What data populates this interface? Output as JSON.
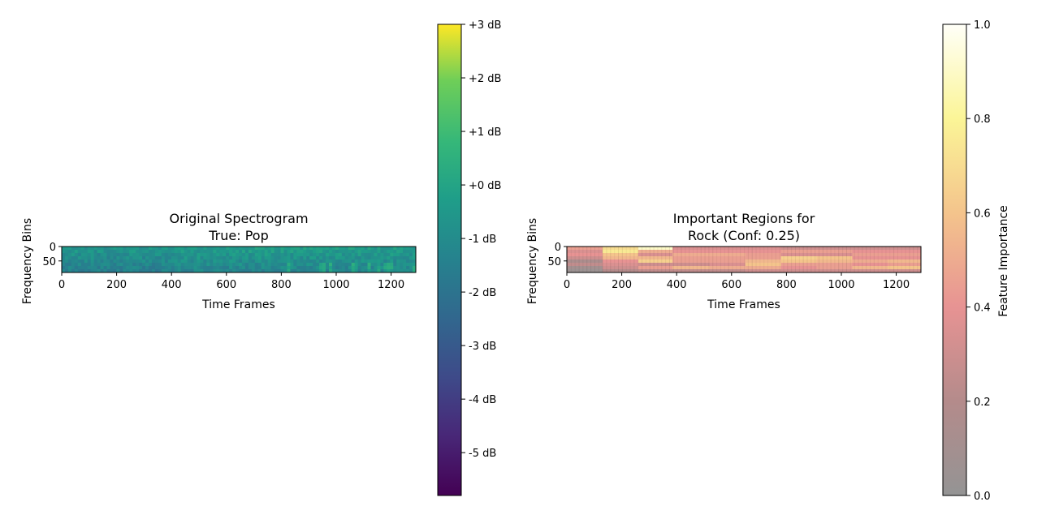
{
  "chart_data": [
    {
      "type": "heatmap",
      "title_lines": [
        "Original Spectrogram",
        "True: Pop"
      ],
      "xlabel": "Time Frames",
      "ylabel": "Frequency Bins",
      "xlim": [
        0,
        1290
      ],
      "ylim": [
        0,
        90
      ],
      "x_ticks": [
        0,
        200,
        400,
        600,
        800,
        1000,
        1200
      ],
      "y_ticks": [
        0,
        50
      ],
      "colormap": "viridis",
      "colorbar": {
        "label": "",
        "range": [
          -5.8,
          3.0
        ],
        "ticks": [
          3,
          2,
          1,
          0,
          -1,
          -2,
          -3,
          -4,
          -5
        ],
        "tick_labels": [
          "+3 dB",
          "+2 dB",
          "+1 dB",
          "+0 dB",
          "-1 dB",
          "-2 dB",
          "-3 dB",
          "-4 dB",
          "-5 dB"
        ]
      },
      "grid": false
    },
    {
      "type": "heatmap",
      "title_lines": [
        "Important Regions for",
        "Rock (Conf: 0.25)"
      ],
      "xlabel": "Time Frames",
      "ylabel": "Frequency Bins",
      "xlim": [
        0,
        1290
      ],
      "ylim": [
        0,
        90
      ],
      "x_ticks": [
        0,
        200,
        400,
        600,
        800,
        1000,
        1200
      ],
      "y_ticks": [
        0,
        50
      ],
      "colormap": "hot_alpha_overlay",
      "overlay_segments": [
        {
          "x": [
            0,
            130
          ],
          "rows": [
            0.45,
            0.35,
            0.4,
            0.3,
            0.15,
            0.25,
            0.1,
            0.05
          ]
        },
        {
          "x": [
            130,
            260
          ],
          "rows": [
            0.7,
            0.75,
            0.6,
            0.55,
            0.4,
            0.35,
            0.3,
            0.2
          ]
        },
        {
          "x": [
            260,
            385
          ],
          "rows": [
            0.9,
            0.5,
            0.35,
            0.55,
            0.65,
            0.3,
            0.45,
            0.25
          ]
        },
        {
          "x": [
            385,
            520
          ],
          "rows": [
            0.35,
            0.4,
            0.5,
            0.45,
            0.45,
            0.3,
            0.55,
            0.25
          ]
        },
        {
          "x": [
            520,
            650
          ],
          "rows": [
            0.35,
            0.4,
            0.5,
            0.45,
            0.45,
            0.35,
            0.5,
            0.25
          ]
        },
        {
          "x": [
            650,
            780
          ],
          "rows": [
            0.35,
            0.4,
            0.45,
            0.45,
            0.55,
            0.6,
            0.5,
            0.3
          ]
        },
        {
          "x": [
            780,
            910
          ],
          "rows": [
            0.3,
            0.45,
            0.35,
            0.65,
            0.6,
            0.45,
            0.4,
            0.3
          ]
        },
        {
          "x": [
            910,
            1040
          ],
          "rows": [
            0.3,
            0.45,
            0.35,
            0.6,
            0.55,
            0.45,
            0.45,
            0.3
          ]
        },
        {
          "x": [
            1040,
            1170
          ],
          "rows": [
            0.3,
            0.4,
            0.45,
            0.4,
            0.5,
            0.4,
            0.55,
            0.3
          ]
        },
        {
          "x": [
            1170,
            1290
          ],
          "rows": [
            0.3,
            0.4,
            0.45,
            0.4,
            0.55,
            0.45,
            0.6,
            0.3
          ]
        }
      ],
      "colorbar": {
        "label": "Feature Importance",
        "range": [
          0.0,
          1.0
        ],
        "ticks": [
          1.0,
          0.8,
          0.6,
          0.4,
          0.2,
          0.0
        ],
        "tick_labels": [
          "1.0",
          "0.8",
          "0.6",
          "0.4",
          "0.2",
          "0.0"
        ]
      },
      "grid": false
    }
  ]
}
